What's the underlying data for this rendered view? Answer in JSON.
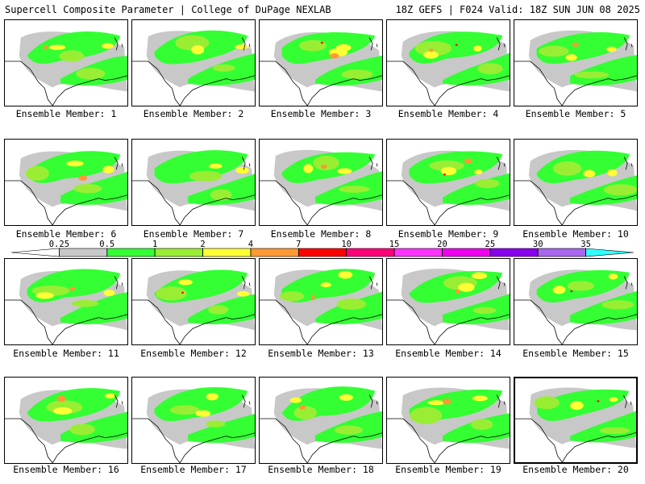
{
  "header": {
    "title": "Supercell Composite Parameter | College of DuPage NEXLAB",
    "run_info": "18Z GEFS | F024 Valid: 18Z SUN JUN 08 2025"
  },
  "panels": [
    {
      "label": "Ensemble Member: 1",
      "selected": false
    },
    {
      "label": "Ensemble Member: 2",
      "selected": false
    },
    {
      "label": "Ensemble Member: 3",
      "selected": false
    },
    {
      "label": "Ensemble Member: 4",
      "selected": false
    },
    {
      "label": "Ensemble Member: 5",
      "selected": false
    },
    {
      "label": "Ensemble Member: 6",
      "selected": false
    },
    {
      "label": "Ensemble Member: 7",
      "selected": false
    },
    {
      "label": "Ensemble Member: 8",
      "selected": false
    },
    {
      "label": "Ensemble Member: 9",
      "selected": false
    },
    {
      "label": "Ensemble Member: 10",
      "selected": false
    },
    {
      "label": "Ensemble Member: 11",
      "selected": false
    },
    {
      "label": "Ensemble Member: 12",
      "selected": false
    },
    {
      "label": "Ensemble Member: 13",
      "selected": false
    },
    {
      "label": "Ensemble Member: 14",
      "selected": false
    },
    {
      "label": "Ensemble Member: 15",
      "selected": false
    },
    {
      "label": "Ensemble Member: 16",
      "selected": false
    },
    {
      "label": "Ensemble Member: 17",
      "selected": false
    },
    {
      "label": "Ensemble Member: 18",
      "selected": false
    },
    {
      "label": "Ensemble Member: 19",
      "selected": false
    },
    {
      "label": "Ensemble Member: 20",
      "selected": true
    }
  ],
  "colorbar": {
    "ticks": [
      "0.25",
      "0.5",
      "1",
      "2",
      "4",
      "7",
      "10",
      "15",
      "20",
      "25",
      "30",
      "35"
    ],
    "colors": [
      "#ffffff",
      "#c8c8c8",
      "#33ff33",
      "#99ee33",
      "#ffff33",
      "#ff9933",
      "#ff0000",
      "#ff0077",
      "#ff33ff",
      "#ee00ee",
      "#8800ee",
      "#aa66ee",
      "#33ffff"
    ]
  },
  "map_colors": {
    "light": "#c8c8c8",
    "green": "#33ff33",
    "lime": "#99ee33",
    "yellow": "#ffff33",
    "orange": "#ff9933",
    "red": "#ff0000"
  }
}
